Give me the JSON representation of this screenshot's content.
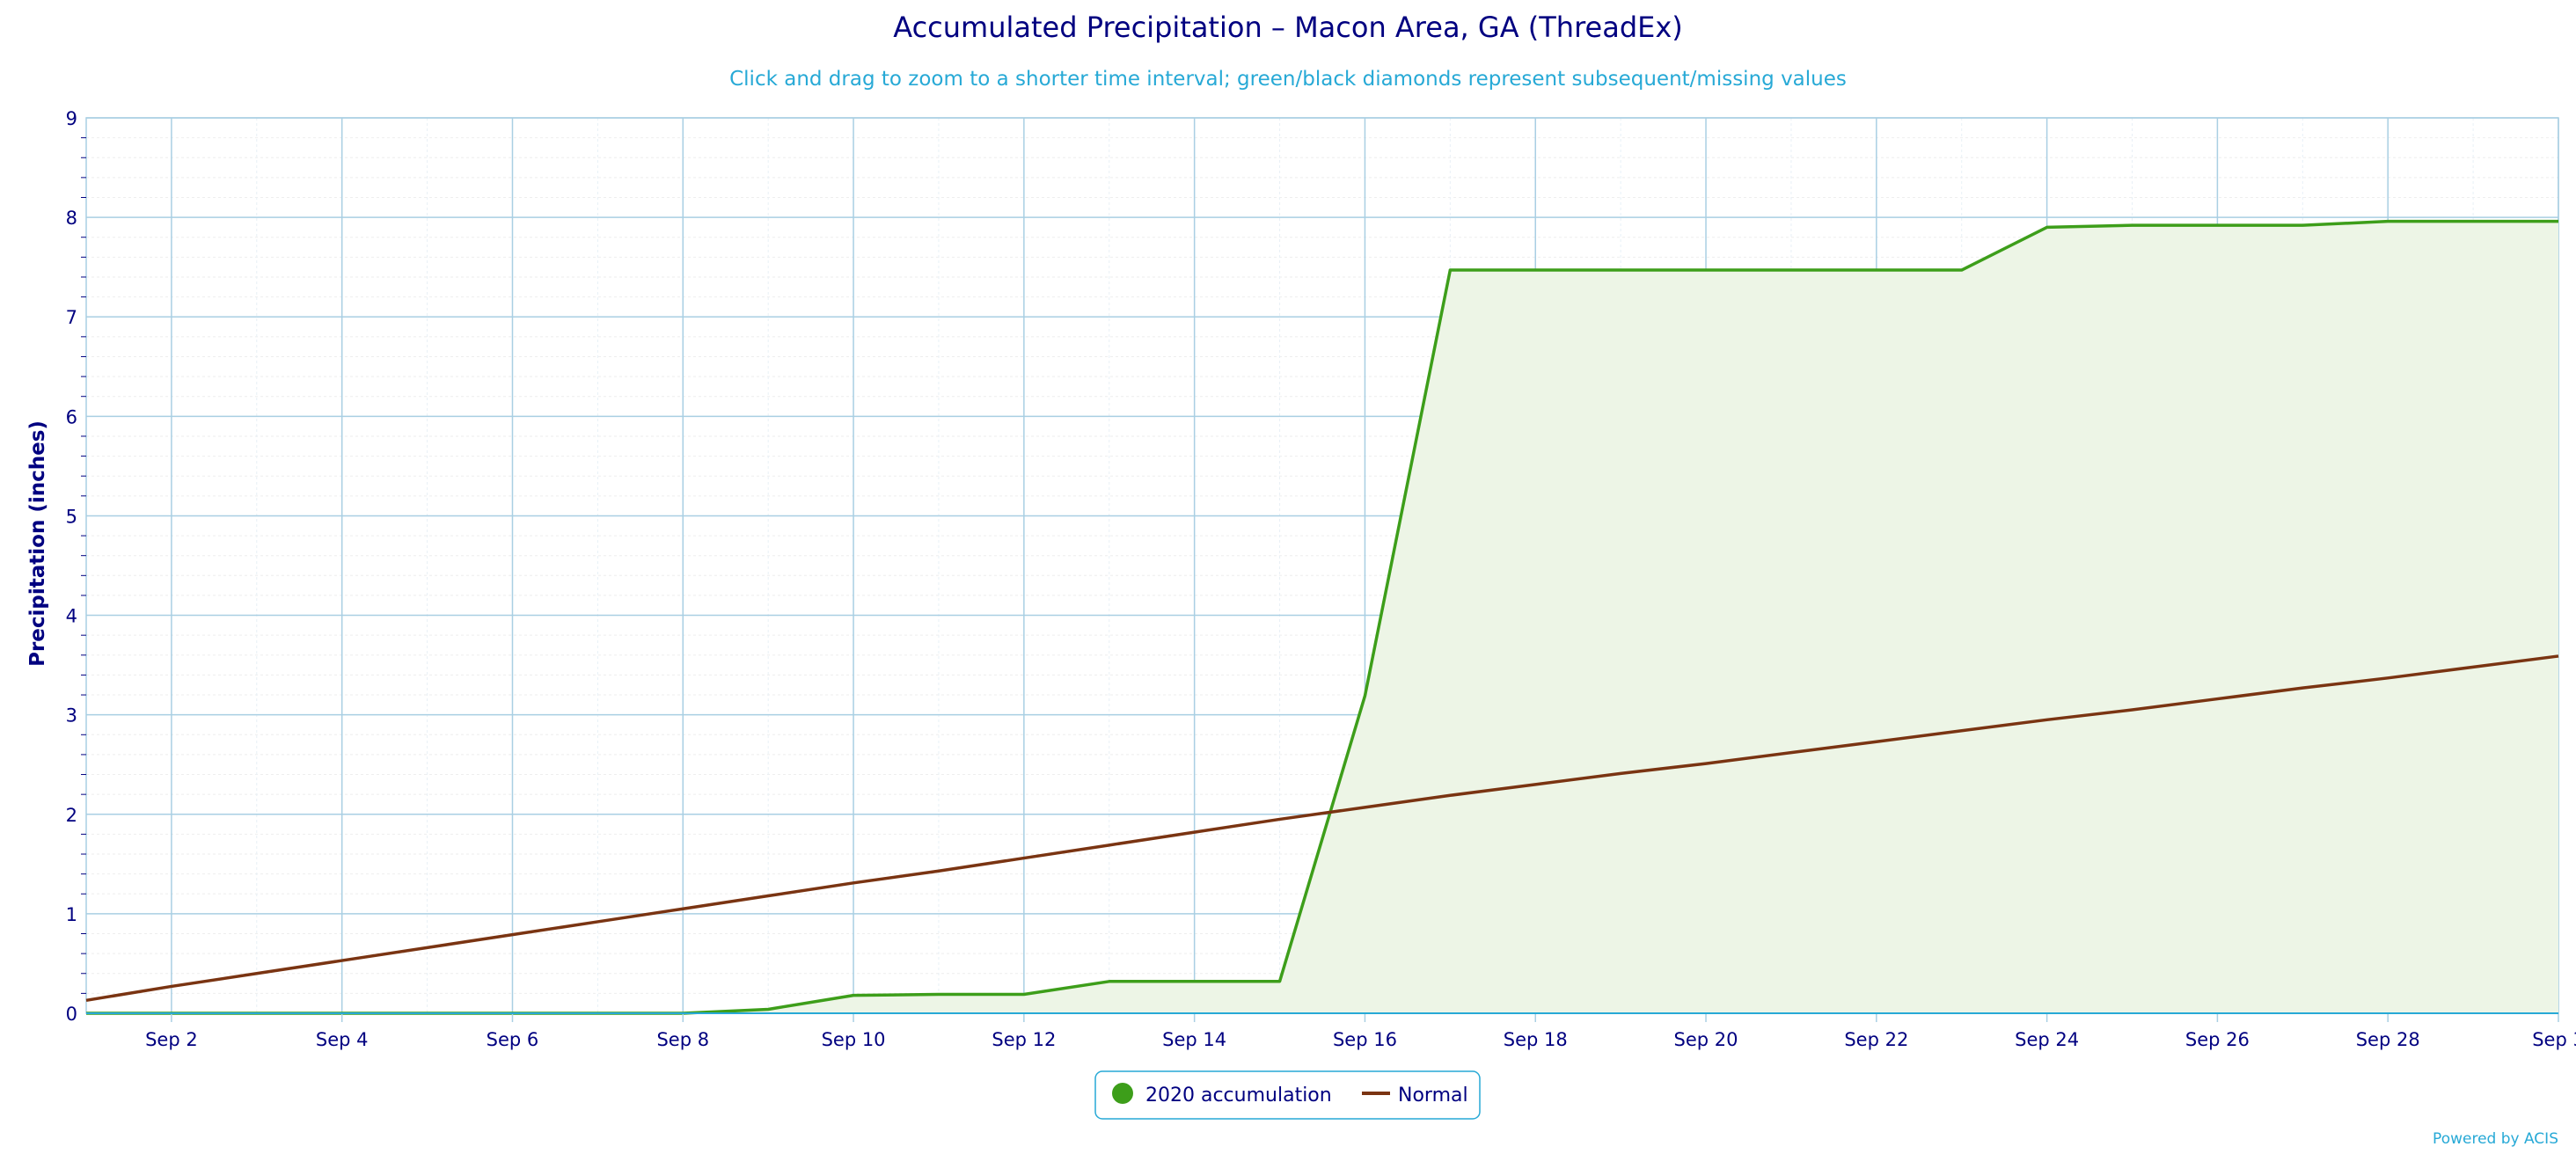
{
  "chart_data": {
    "type": "area",
    "title": "Accumulated Precipitation – Macon Area, GA (ThreadEx)",
    "subtitle": "Click and drag to zoom to a shorter time interval; green/black diamonds represent subsequent/missing values",
    "xlabel": "",
    "ylabel": "Precipitation (inches)",
    "ylim": [
      0,
      9
    ],
    "y_ticks": [
      "0",
      "1",
      "2",
      "3",
      "4",
      "5",
      "6",
      "7",
      "8",
      "9"
    ],
    "xlim": [
      1,
      30
    ],
    "x_ticks": [
      {
        "day": 2,
        "label": "Sep 2"
      },
      {
        "day": 4,
        "label": "Sep 4"
      },
      {
        "day": 6,
        "label": "Sep 6"
      },
      {
        "day": 8,
        "label": "Sep 8"
      },
      {
        "day": 10,
        "label": "Sep 10"
      },
      {
        "day": 12,
        "label": "Sep 12"
      },
      {
        "day": 14,
        "label": "Sep 14"
      },
      {
        "day": 16,
        "label": "Sep 16"
      },
      {
        "day": 18,
        "label": "Sep 18"
      },
      {
        "day": 20,
        "label": "Sep 20"
      },
      {
        "day": 22,
        "label": "Sep 22"
      },
      {
        "day": 24,
        "label": "Sep 24"
      },
      {
        "day": 26,
        "label": "Sep 26"
      },
      {
        "day": 28,
        "label": "Sep 28"
      },
      {
        "day": 30,
        "label": "Sep 3"
      }
    ],
    "grid": true,
    "legend_position": "bottom-center",
    "series": [
      {
        "name": "2020 accumulation",
        "color": "#3d9e1a",
        "fill": "#edf5e6",
        "x": [
          1,
          2,
          3,
          4,
          5,
          6,
          7,
          8,
          9,
          10,
          11,
          12,
          13,
          14,
          15,
          16,
          17,
          18,
          19,
          20,
          21,
          22,
          23,
          24,
          25,
          26,
          27,
          28,
          29,
          30
        ],
        "values": [
          0,
          0,
          0,
          0,
          0,
          0,
          0,
          0,
          0.04,
          0.18,
          0.19,
          0.19,
          0.32,
          0.32,
          0.32,
          3.19,
          7.47,
          7.47,
          7.47,
          7.47,
          7.47,
          7.47,
          7.47,
          7.9,
          7.92,
          7.92,
          7.92,
          7.96,
          7.96,
          7.96
        ]
      },
      {
        "name": "Normal",
        "color": "#7a3412",
        "x": [
          1,
          2,
          3,
          4,
          5,
          6,
          7,
          8,
          9,
          10,
          11,
          12,
          13,
          14,
          15,
          16,
          17,
          18,
          19,
          20,
          21,
          22,
          23,
          24,
          25,
          26,
          27,
          28,
          29,
          30
        ],
        "values": [
          0.13,
          0.27,
          0.4,
          0.53,
          0.66,
          0.79,
          0.92,
          1.05,
          1.18,
          1.31,
          1.43,
          1.56,
          1.69,
          1.82,
          1.95,
          2.07,
          2.19,
          2.3,
          2.41,
          2.51,
          2.62,
          2.73,
          2.84,
          2.95,
          3.05,
          3.16,
          3.27,
          3.37,
          3.48,
          3.59
        ]
      }
    ],
    "credit": "Powered by ACIS"
  }
}
